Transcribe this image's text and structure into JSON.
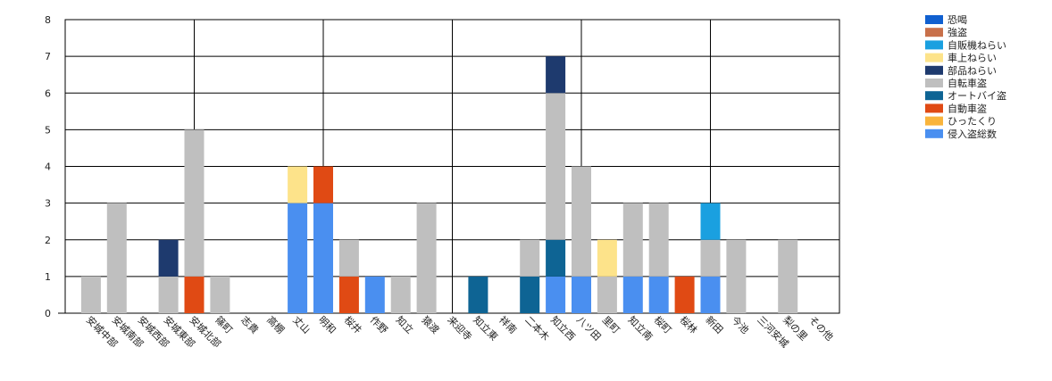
{
  "chart_data": {
    "type": "bar",
    "stacked": true,
    "ylim": [
      0,
      8
    ],
    "yticks": [
      0,
      1,
      2,
      3,
      4,
      5,
      6,
      7,
      8
    ],
    "grid": true,
    "legend_position": "top-right",
    "categories": [
      "安城中部",
      "安城南部",
      "安城西部",
      "安城東部",
      "安城北部",
      "篠町",
      "志貴",
      "高棚",
      "丈山",
      "明和",
      "桜井",
      "作野",
      "知立",
      "猿渡",
      "来迎寺",
      "知立東",
      "祥南",
      "二本木",
      "知立西",
      "八ツ田",
      "里町",
      "知立南",
      "桜町",
      "桜林",
      "新田",
      "今池",
      "三河安城",
      "梨の里",
      "その他"
    ],
    "series": [
      {
        "name": "恐喝",
        "color": "#1060d0",
        "values": [
          0,
          0,
          0,
          0,
          0,
          0,
          0,
          0,
          0,
          0,
          0,
          0,
          0,
          0,
          0,
          0,
          0,
          0,
          0,
          0,
          0,
          0,
          0,
          0,
          0,
          0,
          0,
          0,
          0
        ]
      },
      {
        "name": "強盗",
        "color": "#c8704a",
        "values": [
          0,
          0,
          0,
          0,
          0,
          0,
          0,
          0,
          0,
          0,
          0,
          0,
          0,
          0,
          0,
          0,
          0,
          0,
          0,
          0,
          0,
          0,
          0,
          0,
          0,
          0,
          0,
          0,
          0
        ]
      },
      {
        "name": "自販機ねらい",
        "color": "#1aa0e0",
        "values": [
          0,
          0,
          0,
          0,
          0,
          0,
          0,
          0,
          0,
          0,
          0,
          0,
          0,
          0,
          0,
          0,
          0,
          0,
          0,
          0,
          0,
          0,
          0,
          0,
          1,
          0,
          0,
          0,
          0
        ]
      },
      {
        "name": "車上ねらい",
        "color": "#fde38a",
        "values": [
          0,
          0,
          0,
          0,
          0,
          0,
          0,
          0,
          1,
          0,
          0,
          0,
          0,
          0,
          0,
          0,
          0,
          0,
          0,
          0,
          1,
          0,
          0,
          0,
          0,
          0,
          0,
          0,
          0
        ]
      },
      {
        "name": "部品ねらい",
        "color": "#1e3a6e",
        "values": [
          0,
          0,
          0,
          1,
          0,
          0,
          0,
          0,
          0,
          0,
          0,
          0,
          0,
          0,
          0,
          0,
          0,
          0,
          1,
          0,
          0,
          0,
          0,
          0,
          0,
          0,
          0,
          0,
          0
        ]
      },
      {
        "name": "自転車盗",
        "color": "#bfbfbf",
        "values": [
          1,
          3,
          0,
          1,
          4,
          1,
          0,
          0,
          0,
          0,
          1,
          0,
          1,
          3,
          0,
          0,
          0,
          1,
          4,
          3,
          1,
          2,
          2,
          0,
          1,
          2,
          0,
          2,
          0
        ]
      },
      {
        "name": "オートバイ盗",
        "color": "#0e6494",
        "values": [
          0,
          0,
          0,
          0,
          0,
          0,
          0,
          0,
          0,
          0,
          0,
          0,
          0,
          0,
          0,
          1,
          0,
          1,
          1,
          0,
          0,
          0,
          0,
          0,
          0,
          0,
          0,
          0,
          0
        ]
      },
      {
        "name": "自動車盗",
        "color": "#e04a14",
        "values": [
          0,
          0,
          0,
          0,
          1,
          0,
          0,
          0,
          0,
          1,
          1,
          0,
          0,
          0,
          0,
          0,
          0,
          0,
          0,
          0,
          0,
          0,
          0,
          1,
          0,
          0,
          0,
          0,
          0
        ]
      },
      {
        "name": "ひったくり",
        "color": "#f9b43c",
        "values": [
          0,
          0,
          0,
          0,
          0,
          0,
          0,
          0,
          0,
          0,
          0,
          0,
          0,
          0,
          0,
          0,
          0,
          0,
          0,
          0,
          0,
          0,
          0,
          0,
          0,
          0,
          0,
          0,
          0
        ]
      },
      {
        "name": "侵入盗総数",
        "color": "#4a8ff0",
        "values": [
          0,
          0,
          0,
          0,
          0,
          0,
          0,
          0,
          3,
          3,
          0,
          1,
          0,
          0,
          0,
          0,
          0,
          0,
          1,
          1,
          0,
          1,
          1,
          0,
          1,
          0,
          0,
          0,
          0
        ]
      }
    ],
    "stack_order": [
      "侵入盗総数",
      "自動車盗",
      "オートバイ盗",
      "自転車盗",
      "部品ねらい",
      "車上ねらい",
      "自販機ねらい",
      "強盗",
      "恐喝",
      "ひったくり"
    ]
  }
}
